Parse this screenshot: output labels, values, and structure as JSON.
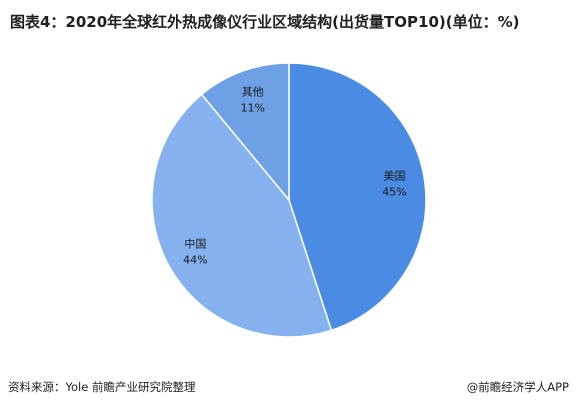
{
  "title": "图表4：2020年全球红外热成像仪行业区域结构(出货量TOP10)(单位：%)",
  "source": "资料来源：Yole 前瞻产业研究院整理",
  "credit": "@前瞻经济学人APP",
  "chart_data": {
    "type": "pie",
    "categories": [
      "美国",
      "中国",
      "其他"
    ],
    "values": [
      45,
      44,
      11
    ],
    "labels": [
      "45%",
      "44%",
      "11%"
    ],
    "colors": [
      "#4a8ce3",
      "#85b2ee",
      "#6ea0e6"
    ],
    "start": "12 o'clock",
    "direction": "clockwise"
  }
}
